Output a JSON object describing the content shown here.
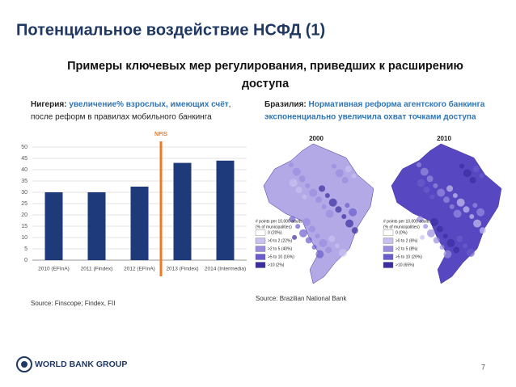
{
  "header": {
    "title": "Потенциальное воздействие НСФД (1)",
    "subtitle": [
      "Примеры ключевых мер регулирования, приведших к расширению",
      "доступа"
    ]
  },
  "left_caption": {
    "label": "Нигерия:",
    "highlight": "увеличение% взрослых, имеющих счёт",
    "suffix": ",",
    "line2": "после реформ в правилах мобильного банкинга"
  },
  "right_caption": {
    "label": "Бразилия:",
    "lines": [
      "Нормативная реформа агентского банкинга",
      "экспоненциально увеличила охват точками доступа"
    ]
  },
  "chart_data": {
    "type": "bar",
    "categories": [
      "2010 (EFInA)",
      "2011 (Findex)",
      "2012 (EFInA)",
      "2013 (Findex)",
      "2014 (Intermedia)"
    ],
    "values": [
      30,
      30,
      32.5,
      43,
      44
    ],
    "color": "#1f3a7a",
    "ylim": [
      0,
      50
    ],
    "yticks": [
      0,
      5,
      10,
      15,
      20,
      25,
      30,
      35,
      40,
      45,
      50
    ],
    "grid": true,
    "annotation": "NFIS",
    "annotation_color": "#f07820"
  },
  "maps": [
    {
      "year": "2000",
      "fill": "#b3a9e6",
      "legend_title": [
        "# points per 10,000 adults",
        "(% of municipalities)"
      ],
      "legend": [
        {
          "label": "0 (20%)",
          "color": "#ffffff"
        },
        {
          "label": ">0 to 2 (22%)",
          "color": "#c9c2f0"
        },
        {
          "label": ">2 to 5 (40%)",
          "color": "#9a8de0"
        },
        {
          "label": ">5 to 10 (16%)",
          "color": "#6a5ccc"
        },
        {
          "label": ">10 (2%)",
          "color": "#3a2ea0"
        }
      ]
    },
    {
      "year": "2010",
      "fill": "#5747c0",
      "legend_title": [
        "# points per 10,000 adults",
        "(% of municipalities)"
      ],
      "legend": [
        {
          "label": "0 (0%)",
          "color": "#ffffff"
        },
        {
          "label": ">0 to 2 (6%)",
          "color": "#c9c2f0"
        },
        {
          "label": ">2 to 5 (8%)",
          "color": "#9a8de0"
        },
        {
          "label": ">5 to 10 (29%)",
          "color": "#6a5ccc"
        },
        {
          "label": ">10 (65%)",
          "color": "#3a2ea0"
        }
      ]
    }
  ],
  "sources": [
    "Source: Finscope; Findex, FII",
    "Source: Brazilian National Bank"
  ],
  "footer": {
    "logo": "WORLD BANK GROUP",
    "page": "7"
  }
}
